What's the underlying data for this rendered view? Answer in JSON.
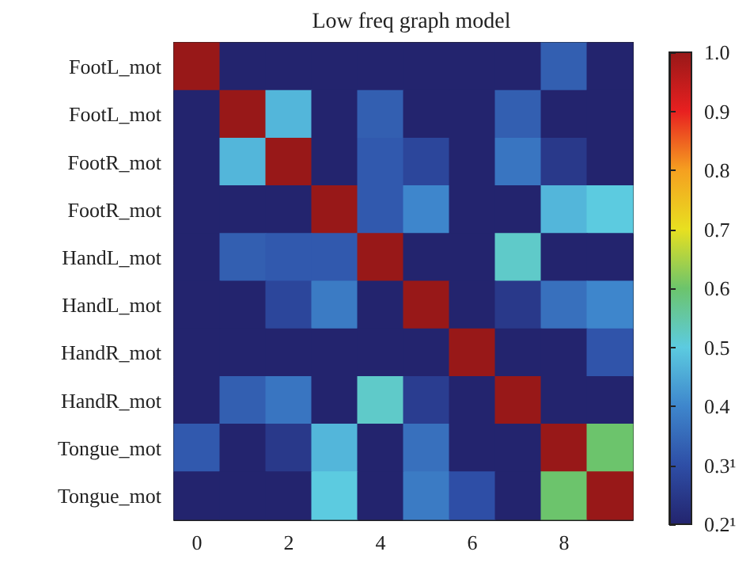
{
  "chart_data": {
    "type": "heatmap",
    "title": "Low freq graph model",
    "categories": [
      "0",
      null,
      "2",
      null,
      "4",
      null,
      "6",
      null,
      "8",
      null
    ],
    "y_categories": [
      "FootL_mot",
      "FootL_mot",
      "FootR_mot",
      "FootR_mot",
      "HandL_mot",
      "HandL_mot",
      "HandR_mot",
      "HandR_mot",
      "Tongue_mot",
      "Tongue_mot"
    ],
    "cells": [
      [
        1,
        0.2,
        0.2,
        0.2,
        0.2,
        0.2,
        0.2,
        0.2,
        0.33,
        0.2
      ],
      [
        0.2,
        1,
        0.47,
        0.2,
        0.33,
        0.2,
        0.2,
        0.33,
        0.2,
        0.2
      ],
      [
        0.2,
        0.47,
        1,
        0.2,
        0.32,
        0.28,
        0.2,
        0.37,
        0.25,
        0.2
      ],
      [
        0.2,
        0.2,
        0.2,
        1,
        0.32,
        0.4,
        0.2,
        0.2,
        0.47,
        0.5
      ],
      [
        0.2,
        0.33,
        0.32,
        0.32,
        1,
        0.2,
        0.2,
        0.52,
        0.2,
        0.2
      ],
      [
        0.2,
        0.2,
        0.28,
        0.38,
        0.2,
        1,
        0.2,
        0.25,
        0.36,
        0.4
      ],
      [
        0.2,
        0.2,
        0.2,
        0.2,
        0.2,
        0.2,
        1,
        0.2,
        0.2,
        0.31
      ],
      [
        0.2,
        0.33,
        0.37,
        0.2,
        0.52,
        0.26,
        0.2,
        1,
        0.2,
        0.2
      ],
      [
        0.32,
        0.2,
        0.25,
        0.47,
        0.2,
        0.36,
        0.2,
        0.2,
        1,
        0.6
      ],
      [
        0.2,
        0.2,
        0.2,
        0.5,
        0.2,
        0.38,
        0.3,
        0.2,
        0.6,
        1
      ]
    ],
    "clim": [
      0.2,
      1.0
    ],
    "cticks": [
      {
        "value": 0.2,
        "label": "0.2¹"
      },
      {
        "value": 0.3,
        "label": "0.3¹"
      },
      0.4,
      0.5,
      0.6,
      0.7,
      0.8,
      0.9,
      {
        "value": 1.0,
        "label": "1.0"
      }
    ]
  }
}
